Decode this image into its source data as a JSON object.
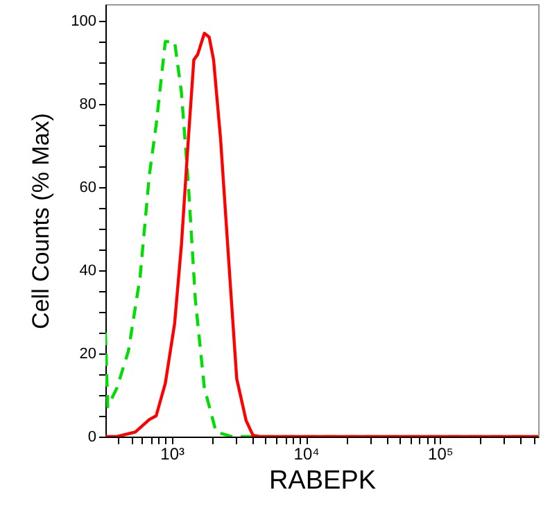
{
  "chart_data": {
    "type": "line",
    "xlabel": "RABEPK",
    "ylabel": "Cell Counts (% Max)",
    "log": "x",
    "grid": false,
    "marker": "none",
    "xlim": [
      320,
      540000
    ],
    "ylim": [
      0,
      104
    ],
    "xticks": [
      {
        "value": 400,
        "label": null
      },
      {
        "value": 500,
        "label": null
      },
      {
        "value": 600,
        "label": null
      },
      {
        "value": 700,
        "label": null
      },
      {
        "value": 800,
        "label": null
      },
      {
        "value": 900,
        "label": null
      },
      {
        "value": 1000,
        "label": "10³"
      },
      {
        "value": 2000,
        "label": null
      },
      {
        "value": 3000,
        "label": null
      },
      {
        "value": 4000,
        "label": null
      },
      {
        "value": 5000,
        "label": null
      },
      {
        "value": 6000,
        "label": null
      },
      {
        "value": 7000,
        "label": null
      },
      {
        "value": 8000,
        "label": null
      },
      {
        "value": 9000,
        "label": null
      },
      {
        "value": 10000,
        "label": "10⁴"
      },
      {
        "value": 20000,
        "label": null
      },
      {
        "value": 30000,
        "label": null
      },
      {
        "value": 40000,
        "label": null
      },
      {
        "value": 50000,
        "label": null
      },
      {
        "value": 60000,
        "label": null
      },
      {
        "value": 70000,
        "label": null
      },
      {
        "value": 80000,
        "label": null
      },
      {
        "value": 90000,
        "label": null
      },
      {
        "value": 100000,
        "label": "10⁵"
      },
      {
        "value": 200000,
        "label": null
      },
      {
        "value": 300000,
        "label": null
      },
      {
        "value": 400000,
        "label": null
      },
      {
        "value": 500000,
        "label": null
      }
    ],
    "yticks": [
      0,
      {
        "value": 5,
        "label": null
      },
      {
        "value": 10,
        "label": null
      },
      {
        "value": 15,
        "label": null
      },
      20,
      {
        "value": 25,
        "label": null
      },
      {
        "value": 30,
        "label": null
      },
      {
        "value": 35,
        "label": null
      },
      40,
      {
        "value": 45,
        "label": null
      },
      {
        "value": 50,
        "label": null
      },
      {
        "value": 55,
        "label": null
      },
      60,
      {
        "value": 65,
        "label": null
      },
      {
        "value": 70,
        "label": null
      },
      {
        "value": 75,
        "label": null
      },
      80,
      {
        "value": 85,
        "label": null
      },
      {
        "value": 90,
        "label": null
      },
      {
        "value": 95,
        "label": null
      },
      100
    ],
    "series": [
      {
        "color": "#00dd00",
        "line_style": "dashed",
        "x": [
          320,
          333,
          390,
          475,
          580,
          680,
          765,
          895,
          1050,
          1180,
          1330,
          1500,
          1750,
          2140,
          2820,
          3580,
          540000
        ],
        "values": [
          25,
          7.2,
          11.7,
          20.6,
          38.3,
          62.8,
          75,
          95,
          95,
          82.8,
          60.6,
          32.8,
          11.7,
          1.1,
          0,
          0,
          0
        ]
      },
      {
        "color": "#ff0000",
        "line_style": "solid",
        "x": [
          320,
          390,
          535,
          680,
          765,
          895,
          1050,
          1180,
          1330,
          1460,
          1560,
          1750,
          1900,
          2050,
          2310,
          2710,
          3050,
          3580,
          4030,
          4540,
          540000
        ],
        "values": [
          0,
          0,
          1.1,
          4.1,
          5,
          12.8,
          27.2,
          46.1,
          71.7,
          90.6,
          91.9,
          97,
          96.1,
          90.6,
          71.7,
          38.3,
          13.9,
          3.9,
          0.3,
          0,
          0
        ]
      }
    ]
  }
}
